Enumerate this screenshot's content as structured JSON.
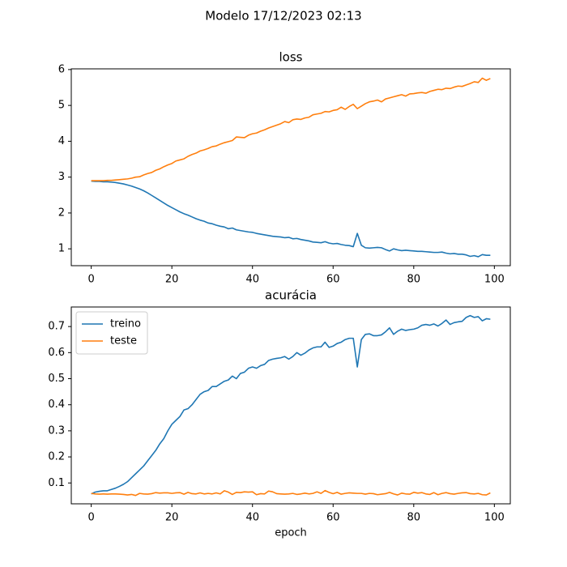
{
  "title": "Modelo 17/12/2023 02:13",
  "chart_data": [
    {
      "type": "line",
      "title": "loss",
      "x": [
        0,
        1,
        2,
        3,
        4,
        5,
        6,
        7,
        8,
        9,
        10,
        11,
        12,
        13,
        14,
        15,
        16,
        17,
        18,
        19,
        20,
        21,
        22,
        23,
        24,
        25,
        26,
        27,
        28,
        29,
        30,
        31,
        32,
        33,
        34,
        35,
        36,
        37,
        38,
        39,
        40,
        41,
        42,
        43,
        44,
        45,
        46,
        47,
        48,
        49,
        50,
        51,
        52,
        53,
        54,
        55,
        56,
        57,
        58,
        59,
        60,
        61,
        62,
        63,
        64,
        65,
        66,
        67,
        68,
        69,
        70,
        71,
        72,
        73,
        74,
        75,
        76,
        77,
        78,
        79,
        80,
        81,
        82,
        83,
        84,
        85,
        86,
        87,
        88,
        89,
        90,
        91,
        92,
        93,
        94,
        95,
        96,
        97,
        98,
        99
      ],
      "series": [
        {
          "name": "treino",
          "color": "#1f77b4",
          "values": [
            2.89,
            2.88,
            2.88,
            2.87,
            2.87,
            2.86,
            2.85,
            2.83,
            2.81,
            2.78,
            2.75,
            2.71,
            2.67,
            2.62,
            2.56,
            2.49,
            2.42,
            2.35,
            2.28,
            2.21,
            2.15,
            2.09,
            2.03,
            1.98,
            1.94,
            1.89,
            1.84,
            1.8,
            1.77,
            1.72,
            1.7,
            1.66,
            1.63,
            1.61,
            1.56,
            1.58,
            1.53,
            1.51,
            1.49,
            1.47,
            1.46,
            1.43,
            1.41,
            1.39,
            1.37,
            1.35,
            1.34,
            1.33,
            1.31,
            1.32,
            1.28,
            1.29,
            1.26,
            1.24,
            1.22,
            1.19,
            1.18,
            1.17,
            1.2,
            1.16,
            1.14,
            1.15,
            1.12,
            1.1,
            1.09,
            1.06,
            1.43,
            1.1,
            1.03,
            1.02,
            1.03,
            1.04,
            1.03,
            0.98,
            0.94,
            1.0,
            0.97,
            0.95,
            0.96,
            0.95,
            0.94,
            0.93,
            0.93,
            0.92,
            0.91,
            0.9,
            0.9,
            0.91,
            0.88,
            0.86,
            0.87,
            0.85,
            0.85,
            0.83,
            0.79,
            0.81,
            0.78,
            0.84,
            0.82,
            0.82
          ]
        },
        {
          "name": "teste",
          "color": "#ff7f0e",
          "values": [
            2.9,
            2.9,
            2.9,
            2.9,
            2.91,
            2.91,
            2.92,
            2.93,
            2.94,
            2.95,
            2.97,
            3.0,
            3.01,
            3.06,
            3.1,
            3.13,
            3.19,
            3.23,
            3.29,
            3.34,
            3.38,
            3.45,
            3.48,
            3.51,
            3.58,
            3.63,
            3.67,
            3.73,
            3.76,
            3.8,
            3.85,
            3.87,
            3.92,
            3.96,
            3.99,
            4.02,
            4.12,
            4.11,
            4.1,
            4.17,
            4.21,
            4.23,
            4.28,
            4.32,
            4.37,
            4.41,
            4.45,
            4.49,
            4.55,
            4.52,
            4.6,
            4.62,
            4.61,
            4.65,
            4.67,
            4.74,
            4.76,
            4.78,
            4.83,
            4.82,
            4.86,
            4.88,
            4.95,
            4.89,
            4.97,
            5.03,
            4.91,
            4.98,
            5.05,
            5.1,
            5.12,
            5.15,
            5.1,
            5.18,
            5.21,
            5.24,
            5.27,
            5.3,
            5.26,
            5.32,
            5.33,
            5.35,
            5.36,
            5.34,
            5.39,
            5.42,
            5.45,
            5.44,
            5.48,
            5.47,
            5.51,
            5.54,
            5.53,
            5.57,
            5.61,
            5.66,
            5.64,
            5.76,
            5.7,
            5.75
          ]
        }
      ],
      "xlim": [
        -4.95,
        103.95
      ],
      "xticks": [
        0,
        20,
        40,
        60,
        80,
        100
      ],
      "ylim": [
        0.53,
        6.02
      ],
      "yticks": [
        1,
        2,
        3,
        4,
        5,
        6
      ],
      "legend": false
    },
    {
      "type": "line",
      "title": "acurácia",
      "xlabel": "epoch",
      "x": [
        0,
        1,
        2,
        3,
        4,
        5,
        6,
        7,
        8,
        9,
        10,
        11,
        12,
        13,
        14,
        15,
        16,
        17,
        18,
        19,
        20,
        21,
        22,
        23,
        24,
        25,
        26,
        27,
        28,
        29,
        30,
        31,
        32,
        33,
        34,
        35,
        36,
        37,
        38,
        39,
        40,
        41,
        42,
        43,
        44,
        45,
        46,
        47,
        48,
        49,
        50,
        51,
        52,
        53,
        54,
        55,
        56,
        57,
        58,
        59,
        60,
        61,
        62,
        63,
        64,
        65,
        66,
        67,
        68,
        69,
        70,
        71,
        72,
        73,
        74,
        75,
        76,
        77,
        78,
        79,
        80,
        81,
        82,
        83,
        84,
        85,
        86,
        87,
        88,
        89,
        90,
        91,
        92,
        93,
        94,
        95,
        96,
        97,
        98,
        99
      ],
      "series": [
        {
          "name": "treino",
          "color": "#1f77b4",
          "values": [
            0.058,
            0.065,
            0.068,
            0.07,
            0.07,
            0.075,
            0.08,
            0.087,
            0.095,
            0.105,
            0.12,
            0.135,
            0.15,
            0.165,
            0.185,
            0.205,
            0.225,
            0.25,
            0.27,
            0.3,
            0.325,
            0.34,
            0.355,
            0.38,
            0.385,
            0.4,
            0.42,
            0.44,
            0.45,
            0.455,
            0.47,
            0.47,
            0.48,
            0.49,
            0.495,
            0.51,
            0.5,
            0.52,
            0.525,
            0.54,
            0.545,
            0.54,
            0.55,
            0.555,
            0.57,
            0.575,
            0.578,
            0.58,
            0.585,
            0.575,
            0.585,
            0.6,
            0.59,
            0.598,
            0.61,
            0.618,
            0.622,
            0.622,
            0.64,
            0.62,
            0.625,
            0.635,
            0.64,
            0.65,
            0.655,
            0.655,
            0.545,
            0.65,
            0.67,
            0.672,
            0.665,
            0.665,
            0.668,
            0.68,
            0.695,
            0.67,
            0.682,
            0.69,
            0.685,
            0.688,
            0.69,
            0.695,
            0.705,
            0.708,
            0.705,
            0.71,
            0.702,
            0.712,
            0.725,
            0.708,
            0.715,
            0.718,
            0.72,
            0.735,
            0.742,
            0.735,
            0.738,
            0.722,
            0.73,
            0.728
          ]
        },
        {
          "name": "teste",
          "color": "#ff7f0e",
          "values": [
            0.06,
            0.058,
            0.057,
            0.058,
            0.057,
            0.058,
            0.058,
            0.057,
            0.056,
            0.054,
            0.056,
            0.052,
            0.06,
            0.058,
            0.057,
            0.059,
            0.063,
            0.061,
            0.062,
            0.062,
            0.06,
            0.062,
            0.063,
            0.057,
            0.064,
            0.059,
            0.058,
            0.062,
            0.058,
            0.06,
            0.058,
            0.062,
            0.058,
            0.07,
            0.065,
            0.056,
            0.064,
            0.063,
            0.066,
            0.065,
            0.066,
            0.055,
            0.059,
            0.058,
            0.069,
            0.066,
            0.059,
            0.058,
            0.057,
            0.058,
            0.06,
            0.056,
            0.058,
            0.061,
            0.058,
            0.06,
            0.066,
            0.06,
            0.071,
            0.064,
            0.059,
            0.064,
            0.057,
            0.06,
            0.062,
            0.061,
            0.06,
            0.06,
            0.057,
            0.06,
            0.059,
            0.055,
            0.057,
            0.059,
            0.064,
            0.058,
            0.054,
            0.061,
            0.058,
            0.057,
            0.064,
            0.061,
            0.063,
            0.058,
            0.056,
            0.063,
            0.055,
            0.06,
            0.063,
            0.059,
            0.057,
            0.06,
            0.062,
            0.063,
            0.059,
            0.058,
            0.06,
            0.055,
            0.054,
            0.062
          ]
        }
      ],
      "xlim": [
        -4.95,
        103.95
      ],
      "xticks": [
        0,
        20,
        40,
        60,
        80,
        100
      ],
      "ylim": [
        0.02,
        0.775
      ],
      "yticks": [
        0.1,
        0.2,
        0.3,
        0.4,
        0.5,
        0.6,
        0.7
      ],
      "legend": "upper left"
    }
  ]
}
